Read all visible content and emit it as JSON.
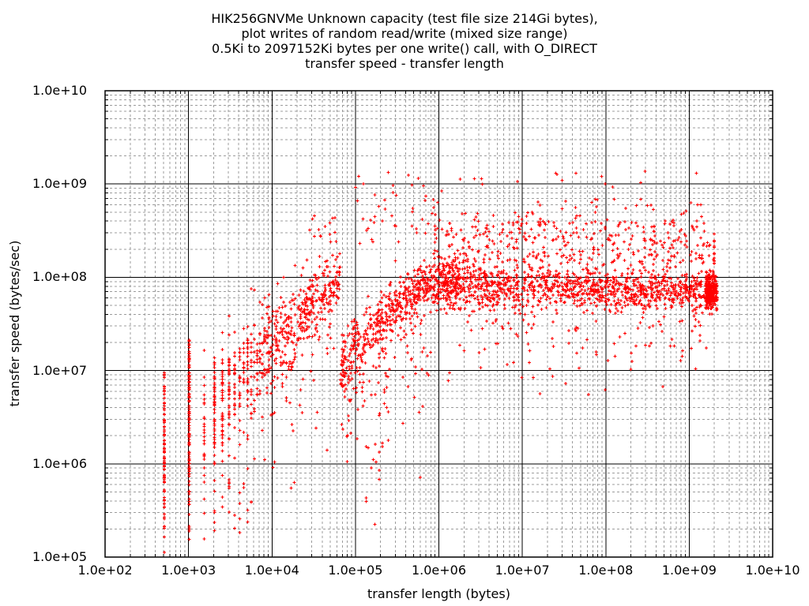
{
  "title_lines": [
    "HIK256GNVMe Unknown capacity (test file size 214Gi bytes),",
    "plot writes of random read/write (mixed size range)",
    "0.5Ki to 2097152Ki bytes per one write() call, with O_DIRECT",
    "transfer speed - transfer length"
  ],
  "axes": {
    "x": {
      "label": "transfer length (bytes)",
      "tick_labels": [
        "1.0e+02",
        "1.0e+03",
        "1.0e+04",
        "1.0e+05",
        "1.0e+06",
        "1.0e+07",
        "1.0e+08",
        "1.0e+09",
        "1.0e+10"
      ],
      "scale": "log"
    },
    "y": {
      "label": "transfer speed (bytes/sec)",
      "tick_labels": [
        "1.0e+10",
        "1.0e+09",
        "1.0e+08",
        "1.0e+07",
        "1.0e+06",
        "1.0e+05"
      ],
      "scale": "log"
    }
  },
  "colors": {
    "marker": "#ff0000",
    "major_grid": "#000000",
    "minor_grid": "#9c9c9c",
    "border": "#000000",
    "text": "#000000",
    "background": "#ffffff"
  },
  "chart_data": {
    "type": "scatter",
    "title": "HIK256GNVMe Unknown capacity (test file size 214Gi bytes), plot writes of random read/write (mixed size range) 0.5Ki to 2097152Ki bytes per one write() call, with O_DIRECT — transfer speed - transfer length",
    "xlabel": "transfer length (bytes)",
    "ylabel": "transfer speed (bytes/sec)",
    "x_scale": "log",
    "y_scale": "log",
    "x_range": [
      100.0,
      10000000000.0
    ],
    "y_range": [
      100000.0,
      10000000000.0
    ],
    "x_log_range": [
      2,
      10
    ],
    "y_log_range": [
      5,
      10
    ],
    "x_data_extent": [
      512,
      2147483648
    ],
    "y_data_extent": [
      110000.0,
      1350000000.0
    ],
    "marker": "plus",
    "marker_color": "#ff0000",
    "legend": "none",
    "grid": {
      "major": "solid",
      "minor": "dashed"
    },
    "seed": 7,
    "n_points_approx": 3700,
    "clusters": [
      {
        "id": "col-512",
        "kind": "segments",
        "lx": 2.7093,
        "parts": [
          {
            "ly0": 6.0,
            "ly1": 6.85,
            "n": 48
          },
          {
            "ly0": 5.55,
            "ly1": 6.02,
            "n": 26
          },
          {
            "ly0": 5.05,
            "ly1": 5.55,
            "n": 12
          },
          {
            "ly0": 6.85,
            "ly1": 7.02,
            "n": 4
          }
        ]
      },
      {
        "id": "col-1024",
        "kind": "segments",
        "lx": 3.0103,
        "parts": [
          {
            "ly0": 6.3,
            "ly1": 7.33,
            "n": 78
          },
          {
            "ly0": 5.72,
            "ly1": 6.3,
            "n": 30
          },
          {
            "ly0": 5.15,
            "ly1": 5.72,
            "n": 14
          }
        ]
      },
      {
        "id": "rise-a",
        "kind": "band",
        "lx0": 3.186,
        "lx1": 4.816,
        "ly_a": 6.55,
        "ly_m": 7.35,
        "ly_b": 7.95,
        "sigma0": 0.3,
        "sigma1": 0.15,
        "n": 640,
        "snap": 512
      },
      {
        "id": "rise-a-tail",
        "kind": "tail",
        "lx0": 3.186,
        "lx1": 4.75,
        "ly_a": 6.55,
        "ly_m": 7.3,
        "ly_b": 7.9,
        "drop": 0.2,
        "spread": 0.6,
        "n": 90,
        "snap": 512
      },
      {
        "id": "rise-a-low",
        "kind": "cloud",
        "lx0": 3.18,
        "lx1": 3.8,
        "ly0": 5.15,
        "ly1": 6.1,
        "n": 26,
        "snap": 512
      },
      {
        "id": "rise-a-top",
        "kind": "cloud",
        "lx0": 4.4,
        "lx1": 4.95,
        "ly0": 8.1,
        "ly1": 8.75,
        "n": 22
      },
      {
        "id": "rise-b",
        "kind": "band",
        "lx0": 4.82,
        "lx1": 6.25,
        "ly_a": 7.02,
        "ly_m": 7.9,
        "ly_b": 8.02,
        "sigma0": 0.16,
        "sigma1": 0.13,
        "n": 640
      },
      {
        "id": "rise-b-tail",
        "kind": "tail",
        "lx0": 4.82,
        "lx1": 5.9,
        "ly_a": 7.05,
        "ly_m": 7.6,
        "ly_b": 7.9,
        "drop": 0.25,
        "spread": 0.6,
        "n": 85
      },
      {
        "id": "arc-high",
        "kind": "cloud",
        "lx0": 5.0,
        "lx1": 6.1,
        "ly0": 8.35,
        "ly1": 9.13,
        "n": 48
      },
      {
        "id": "plateau",
        "kind": "band",
        "lx0": 6.05,
        "lx1": 9.33,
        "ly_a": 7.9,
        "ly_m": 7.88,
        "ly_b": 7.85,
        "sigma0": 0.13,
        "sigma1": 0.11,
        "n": 1180
      },
      {
        "id": "plateau-upper",
        "kind": "cloud",
        "lx0": 5.95,
        "lx1": 9.25,
        "ly0": 8.15,
        "ly1": 8.6,
        "n": 330
      },
      {
        "id": "plateau-upper-sparse",
        "kind": "cloud",
        "lx0": 6.2,
        "lx1": 9.15,
        "ly0": 8.6,
        "ly1": 8.85,
        "n": 45
      },
      {
        "id": "plateau-top-outliers",
        "kind": "cloud",
        "lx0": 6.0,
        "lx1": 9.2,
        "ly0": 8.95,
        "ly1": 9.15,
        "n": 15
      },
      {
        "id": "plateau-lower",
        "kind": "tail",
        "lx0": 6.1,
        "lx1": 9.25,
        "ly_a": 7.6,
        "ly_m": 7.6,
        "ly_b": 7.6,
        "drop": 0.05,
        "spread": 0.4,
        "n": 90
      },
      {
        "id": "end-blob",
        "kind": "band",
        "lx0": 9.2,
        "lx1": 9.335,
        "ly_a": 7.85,
        "ly_m": 7.84,
        "ly_b": 7.82,
        "sigma0": 0.1,
        "sigma1": 0.08,
        "n": 270
      },
      {
        "id": "end-spur",
        "kind": "segments",
        "lx": 9.3,
        "parts": [
          {
            "ly0": 7.95,
            "ly1": 8.5,
            "n": 13
          }
        ]
      }
    ]
  }
}
